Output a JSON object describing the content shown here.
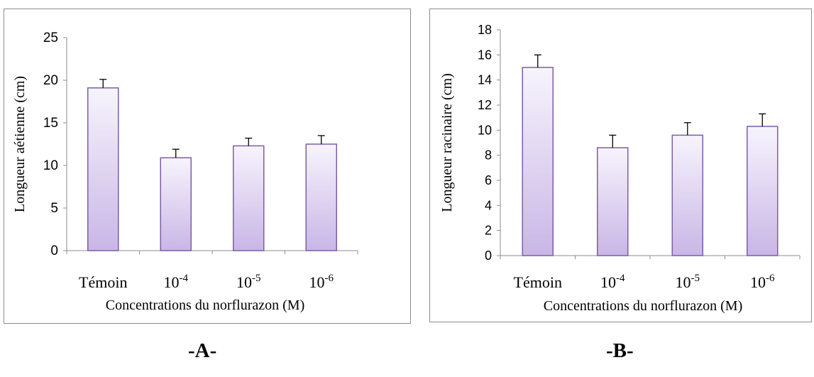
{
  "chart_data": [
    {
      "type": "bar",
      "panel_label": "-A-",
      "categories": [
        {
          "label": "Témoin",
          "base": "Témoin",
          "exp": ""
        },
        {
          "label": "10-4",
          "base": "10",
          "exp": "-4"
        },
        {
          "label": "10-5",
          "base": "10",
          "exp": "-5"
        },
        {
          "label": "10-6",
          "base": "10",
          "exp": "-6"
        }
      ],
      "values": [
        19.1,
        10.9,
        12.3,
        12.5
      ],
      "errors": [
        1.0,
        1.0,
        0.9,
        1.0
      ],
      "yticks": [
        "0",
        "5",
        "10",
        "15",
        "20",
        "25"
      ],
      "ylim": [
        0,
        25
      ],
      "ylabel": "Longueur aétienne (cm)",
      "xlabel": "Concentrations du norflurazon (M)",
      "grid": false,
      "colors": {
        "bar_top": "#f7f4fd",
        "bar_bottom": "#c9b6e6",
        "bar_edge": "#7d5da8",
        "axis": "#8c8c8c"
      }
    },
    {
      "type": "bar",
      "panel_label": "-B-",
      "categories": [
        {
          "label": "Témoin",
          "base": "Témoin",
          "exp": ""
        },
        {
          "label": "10-4",
          "base": "10",
          "exp": "-4"
        },
        {
          "label": "10-5",
          "base": "10",
          "exp": "-5"
        },
        {
          "label": "10-6",
          "base": "10",
          "exp": "-6"
        }
      ],
      "values": [
        15.0,
        8.6,
        9.6,
        10.3
      ],
      "errors": [
        1.0,
        1.0,
        1.0,
        1.0
      ],
      "yticks": [
        "0",
        "2",
        "4",
        "6",
        "8",
        "10",
        "12",
        "14",
        "16",
        "18"
      ],
      "ylim": [
        0,
        18
      ],
      "ylabel": "Longueur racinaire (cm)",
      "xlabel": "Concentrations du norflurazon (M)",
      "grid": false,
      "colors": {
        "bar_top": "#f7f4fd",
        "bar_bottom": "#c9b6e6",
        "bar_edge": "#7d5da8",
        "axis": "#8c8c8c"
      }
    }
  ]
}
